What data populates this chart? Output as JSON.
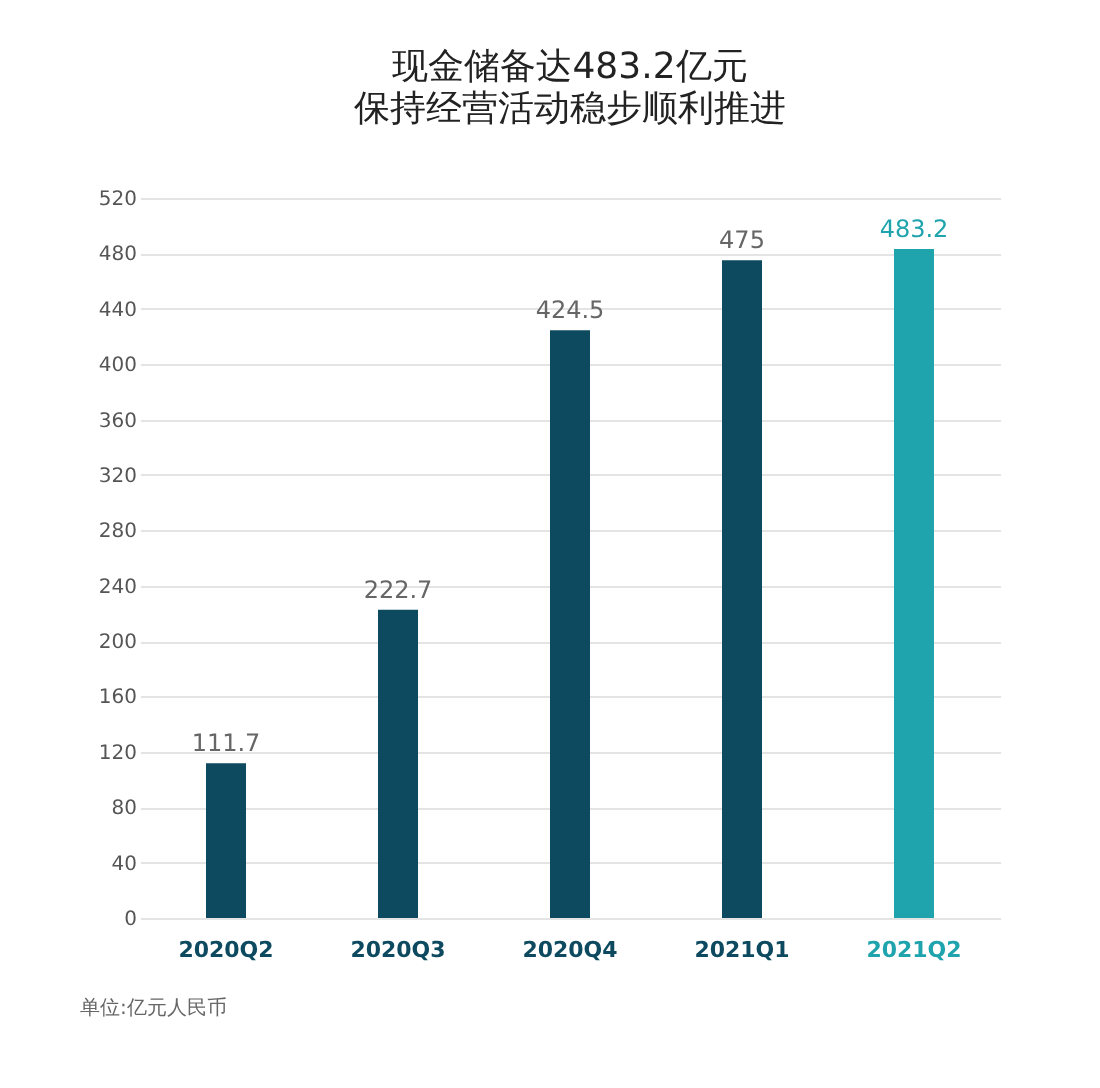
{
  "chart_data": {
    "type": "bar",
    "title": "现金储备达483.2亿元",
    "subtitle": "保持经营活动稳步顺利推进",
    "categories": [
      "2020Q2",
      "2020Q3",
      "2020Q4",
      "2021Q1",
      "2021Q2"
    ],
    "values": [
      111.7,
      222.7,
      424.5,
      475,
      483.2
    ],
    "colors": [
      "#0d4a60",
      "#0d4a60",
      "#0d4a60",
      "#0d4a60",
      "#1fa3ad"
    ],
    "ylim": [
      0,
      520
    ],
    "yticks": [
      0,
      40,
      80,
      120,
      160,
      200,
      240,
      280,
      320,
      360,
      400,
      440,
      480,
      520
    ],
    "grid": "y",
    "data_labels": true,
    "annotations": [
      "单位:亿元人民币"
    ]
  }
}
